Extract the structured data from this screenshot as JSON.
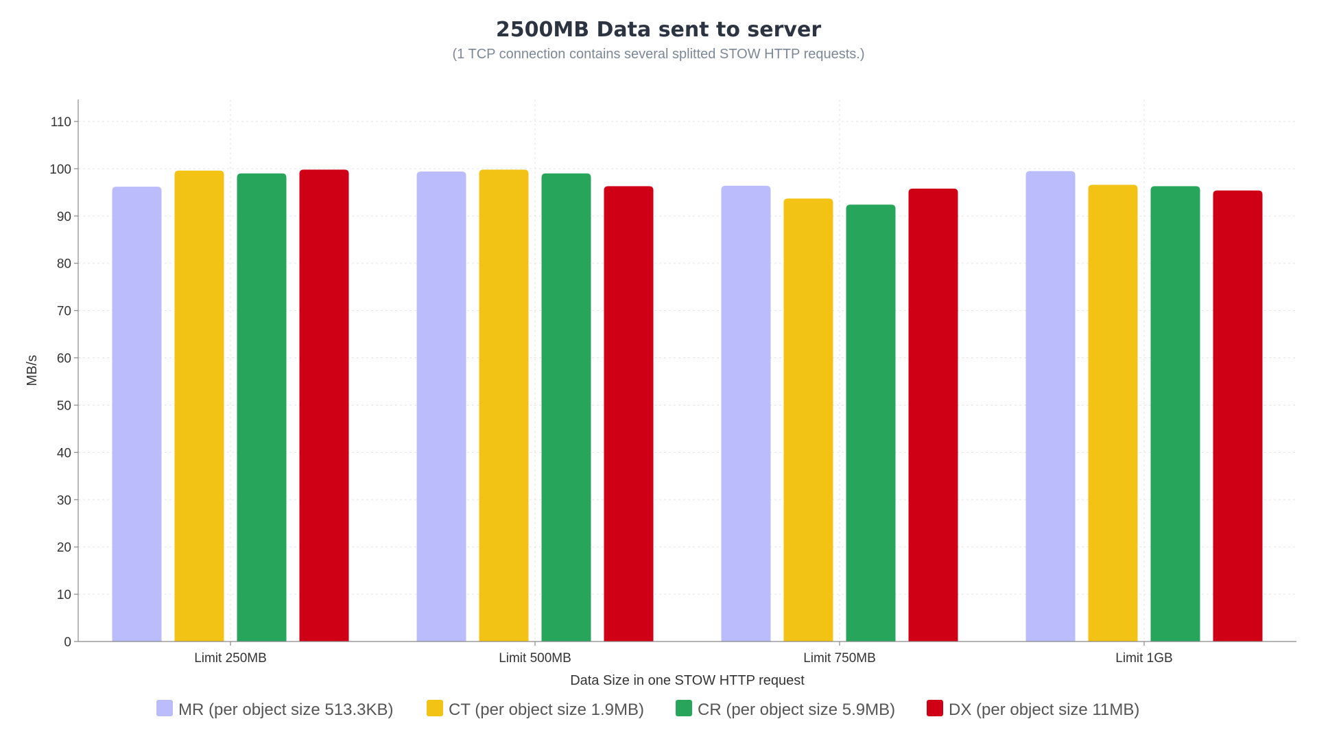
{
  "chart_data": {
    "type": "bar",
    "title": "2500MB Data sent to server",
    "subtitle": "(1 TCP connection contains several splitted STOW HTTP requests.)",
    "xlabel": "Data Size in one STOW HTTP request",
    "ylabel": "MB/s",
    "ylim": [
      0,
      110
    ],
    "yticks": [
      0,
      10,
      20,
      30,
      40,
      50,
      60,
      70,
      80,
      90,
      100,
      110
    ],
    "grid": true,
    "legend_position": "bottom",
    "categories": [
      "Limit 250MB",
      "Limit 500MB",
      "Limit 750MB",
      "Limit 1GB"
    ],
    "series": [
      {
        "name": "MR (per object size 513.3KB)",
        "color": "#babcfc",
        "values": [
          96.2,
          99.4,
          96.4,
          99.5
        ]
      },
      {
        "name": "CT (per object size 1.9MB)",
        "color": "#f2c314",
        "values": [
          99.6,
          99.8,
          93.7,
          96.6
        ]
      },
      {
        "name": "CR (per object size 5.9MB)",
        "color": "#27a65b",
        "values": [
          99.0,
          99.0,
          92.4,
          96.3
        ]
      },
      {
        "name": "DX (per object size 11MB)",
        "color": "#cf0016",
        "values": [
          99.8,
          96.3,
          95.8,
          95.4
        ]
      }
    ]
  }
}
